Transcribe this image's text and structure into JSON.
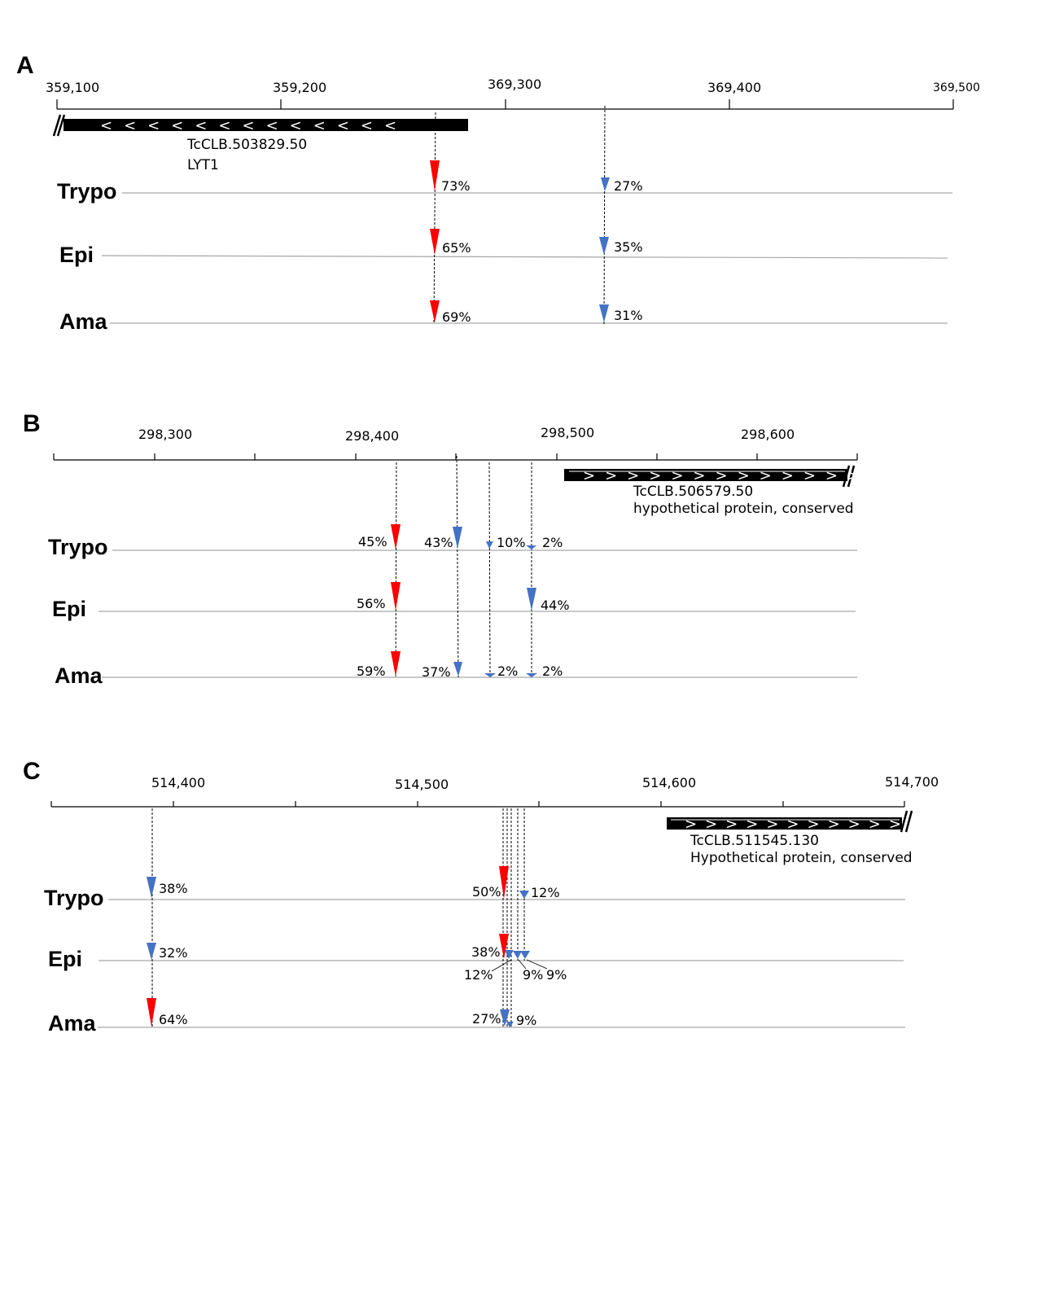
{
  "colors": {
    "major_site": "#ff0000",
    "minor_site": "#4472c4",
    "gene": "#000000",
    "track": "#a6a6a6"
  },
  "panels": [
    {
      "letter": "A",
      "ticks": [
        "359,100",
        "359,200",
        "369,300",
        "369,400",
        "369,500"
      ],
      "gene": {
        "id": "TcCLB.503829.50",
        "desc": "LYT1",
        "strand": "minus"
      },
      "stages": [
        "Trypo",
        "Epi",
        "Ama"
      ],
      "labels": [
        {
          "stage": "Trypo",
          "text": "73%"
        },
        {
          "stage": "Trypo",
          "text": "27%"
        },
        {
          "stage": "Epi",
          "text": "65%"
        },
        {
          "stage": "Epi",
          "text": "35%"
        },
        {
          "stage": "Ama",
          "text": "69%"
        },
        {
          "stage": "Ama",
          "text": "31%"
        }
      ]
    },
    {
      "letter": "B",
      "ticks": [
        "298,300",
        "298,400",
        "298,500",
        "298,600"
      ],
      "gene": {
        "id": "TcCLB.506579.50",
        "desc": "hypothetical protein, conserved",
        "strand": "plus"
      },
      "stages": [
        "Trypo",
        "Epi",
        "Ama"
      ],
      "labels": [
        {
          "stage": "Trypo",
          "text": "45%"
        },
        {
          "stage": "Trypo",
          "text": "43%"
        },
        {
          "stage": "Trypo",
          "text": "10%"
        },
        {
          "stage": "Trypo",
          "text": "2%"
        },
        {
          "stage": "Epi",
          "text": "56%"
        },
        {
          "stage": "Epi",
          "text": "44%"
        },
        {
          "stage": "Ama",
          "text": "59%"
        },
        {
          "stage": "Ama",
          "text": "37%"
        },
        {
          "stage": "Ama",
          "text": "2%"
        },
        {
          "stage": "Ama",
          "text": "2%"
        }
      ]
    },
    {
      "letter": "C",
      "ticks": [
        "514,400",
        "514,500",
        "514,600",
        "514,700"
      ],
      "gene": {
        "id": "TcCLB.511545.130",
        "desc": "Hypothetical protein, conserved",
        "strand": "plus"
      },
      "stages": [
        "Trypo",
        "Epi",
        "Ama"
      ],
      "labels": [
        {
          "stage": "Trypo",
          "text": "38%"
        },
        {
          "stage": "Trypo",
          "text": "50%"
        },
        {
          "stage": "Trypo",
          "text": "12%"
        },
        {
          "stage": "Epi",
          "text": "32%"
        },
        {
          "stage": "Epi",
          "text": "38%"
        },
        {
          "stage": "Epi",
          "text": "12%"
        },
        {
          "stage": "Epi",
          "text": "9%"
        },
        {
          "stage": "Epi",
          "text": "9%"
        },
        {
          "stage": "Ama",
          "text": "64%"
        },
        {
          "stage": "Ama",
          "text": "27%"
        },
        {
          "stage": "Ama",
          "text": "9%"
        }
      ]
    }
  ]
}
